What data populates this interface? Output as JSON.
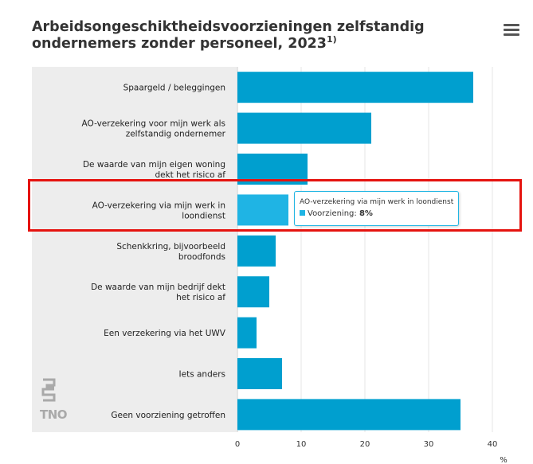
{
  "header": {
    "title": "Arbeidsongeschiktheidsvoorzieningen zelfstandig ondernemers zonder personeel, 2023",
    "title_footnote": "1)",
    "menu_icon": "hamburger-menu-icon"
  },
  "chart_data": {
    "type": "bar",
    "orientation": "horizontal",
    "categories": [
      "Spaargeld / beleggingen",
      "AO-verzekering voor mijn werk als zelfstandig ondernemer",
      "De waarde van mijn eigen woning dekt het risico af",
      "AO-verzekering via mijn werk in loondienst",
      "Schenkkring, bijvoorbeeld broodfonds",
      "De waarde van mijn bedrijf dekt het risico af",
      "Een verzekering via het UWV",
      "Iets anders",
      "Geen voorziening getroffen"
    ],
    "series": [
      {
        "name": "Voorziening",
        "values": [
          37,
          21,
          11,
          8,
          6,
          5,
          3,
          7,
          35
        ]
      }
    ],
    "xlabel": "%",
    "xlim": [
      0,
      40
    ],
    "xticks": [
      "0",
      "10",
      "20",
      "30",
      "40"
    ],
    "grid": true,
    "legend": "none",
    "highlighted_index": 3
  },
  "tooltip": {
    "title": "AO-verzekering via mijn werk in loondienst",
    "series_label": "Voorziening:",
    "value": "8%"
  },
  "colors": {
    "bar": "#009fcf",
    "bar_highlight": "#1fb4e4",
    "plot_background": "#ededed",
    "highlight_outline": "#e5130f"
  },
  "logos": {
    "cbs": "cbs-logo",
    "tno_text": "TNO"
  }
}
